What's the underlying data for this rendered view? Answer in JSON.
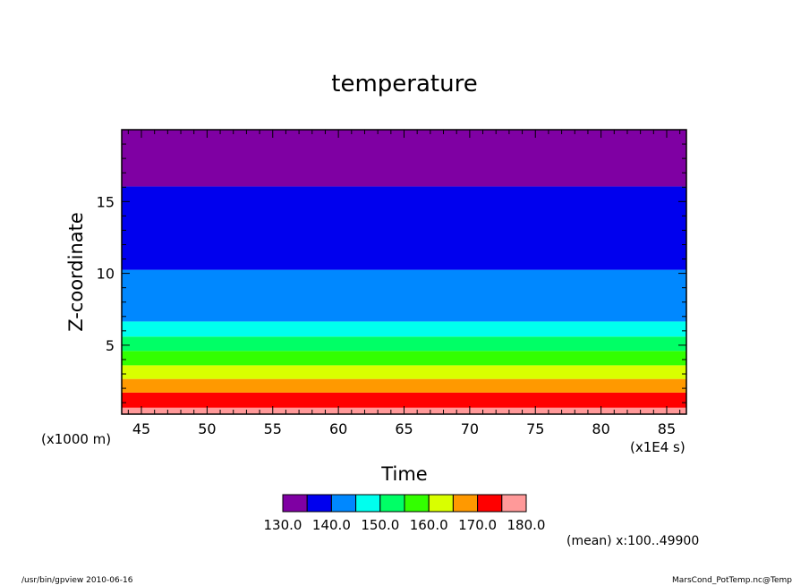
{
  "chart_data": {
    "type": "heatmap",
    "title": "temperature",
    "xlabel": "Time",
    "ylabel": "Z-coordinate",
    "x_unit": "(x1E4 s)",
    "y_unit": "(x1000 m)",
    "xlim": [
      43.5,
      86.5
    ],
    "ylim": [
      0.2,
      20.0
    ],
    "xticks": [
      45,
      50,
      55,
      60,
      65,
      70,
      75,
      80,
      85
    ],
    "yticks": [
      5,
      10,
      15
    ],
    "levels": [
      130.0,
      135.0,
      140.0,
      145.0,
      150.0,
      155.0,
      160.0,
      165.0,
      170.0,
      175.0,
      180.0
    ],
    "colors": [
      "#7f00a3",
      "#0000ee",
      "#0088ff",
      "#00ffee",
      "#00ff66",
      "#33ff00",
      "#d9ff00",
      "#ff9900",
      "#ff0000",
      "#ff9999"
    ],
    "bands": [
      {
        "z0": 0.2,
        "z1": 0.65,
        "value": 177.5
      },
      {
        "z0": 0.65,
        "z1": 1.7,
        "value": 172.5
      },
      {
        "z0": 1.7,
        "z1": 2.65,
        "value": 167.5
      },
      {
        "z0": 2.65,
        "z1": 3.6,
        "value": 162.5
      },
      {
        "z0": 3.6,
        "z1": 4.6,
        "value": 157.5
      },
      {
        "z0": 4.6,
        "z1": 5.6,
        "value": 152.5
      },
      {
        "z0": 5.6,
        "z1": 6.65,
        "value": 147.5
      },
      {
        "z0": 6.65,
        "z1": 10.25,
        "value": 142.5
      },
      {
        "z0": 10.25,
        "z1": 16.05,
        "value": 137.5
      },
      {
        "z0": 16.05,
        "z1": 20.0,
        "value": 132.5
      }
    ],
    "colorbar_labels": [
      "130.0",
      "140.0",
      "150.0",
      "160.0",
      "170.0",
      "180.0"
    ],
    "annotation": "(mean) x:100..49900"
  },
  "footer": {
    "left": "/usr/bin/gpview   2010-06-16",
    "right": "MarsCond_PotTemp.nc@Temp"
  }
}
